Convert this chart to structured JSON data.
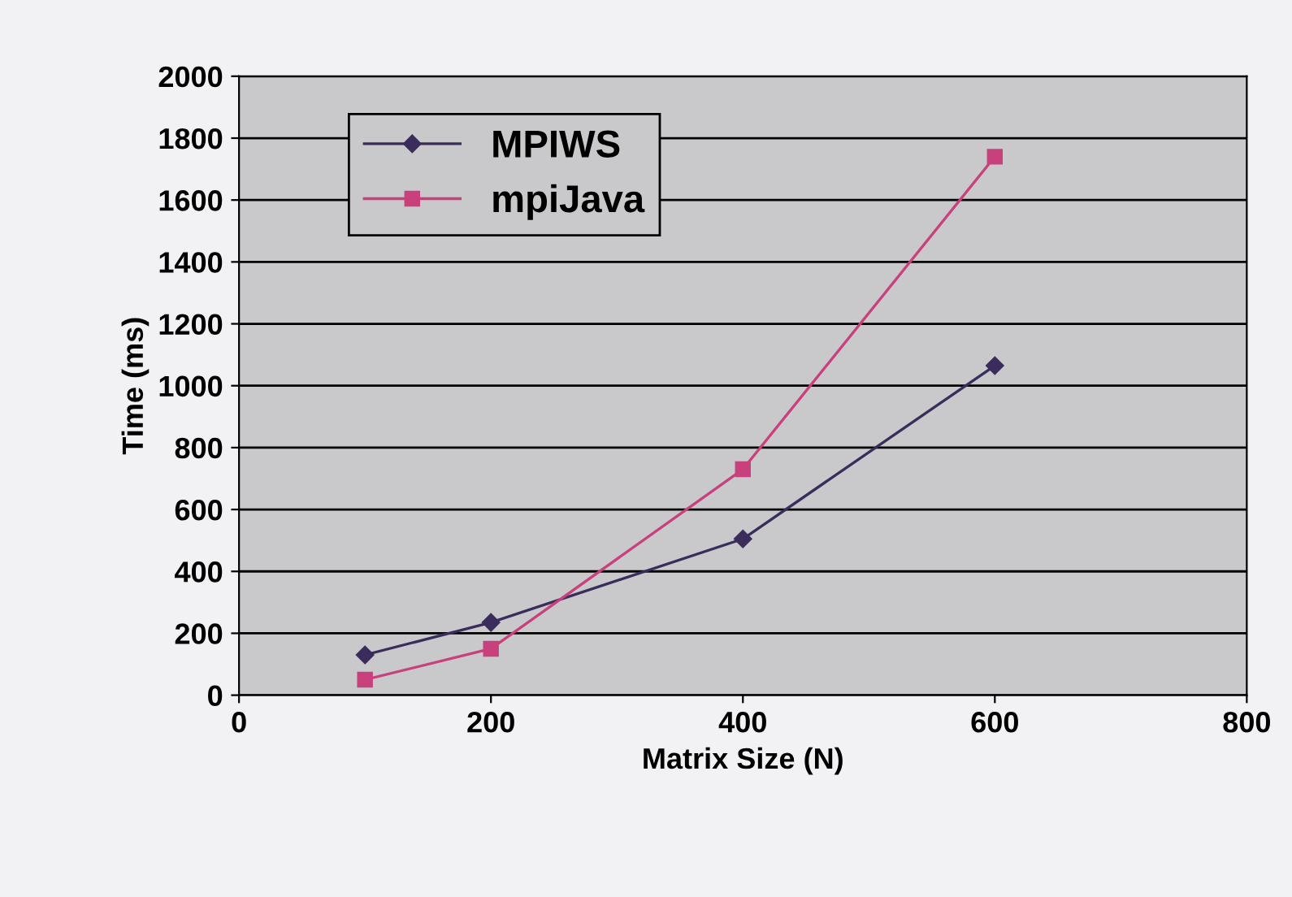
{
  "chart_data": {
    "type": "line",
    "xlabel": "Matrix Size (N)",
    "ylabel": "Time (ms)",
    "x": [
      100,
      200,
      400,
      600
    ],
    "series": [
      {
        "name": "MPIWS",
        "color": "#3a2d5c",
        "values": [
          130,
          235,
          505,
          1065
        ],
        "marker": "diamond"
      },
      {
        "name": "mpiJava",
        "color": "#c8407c",
        "values": [
          50,
          150,
          730,
          1740
        ],
        "marker": "square"
      }
    ],
    "xlim": [
      0,
      800
    ],
    "xticks": [
      0,
      200,
      400,
      600,
      800
    ],
    "ylim": [
      0,
      2000
    ],
    "yticks": [
      0,
      200,
      400,
      600,
      800,
      1000,
      1200,
      1400,
      1600,
      1800,
      2000
    ],
    "grid": "y",
    "legend": "top left",
    "line_style": "solid"
  }
}
